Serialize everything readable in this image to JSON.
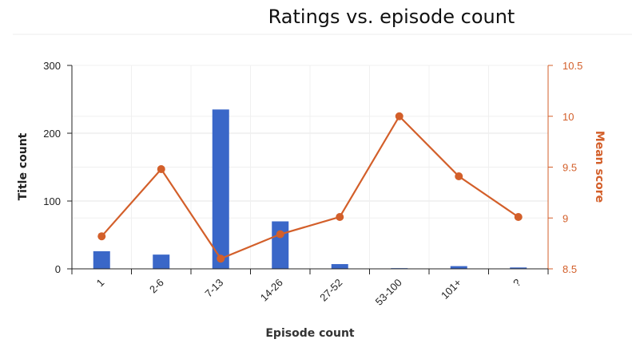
{
  "chart_data": {
    "type": "bar+line",
    "title": "Ratings vs. episode count",
    "xlabel": "Episode count",
    "categories": [
      "1",
      "2-6",
      "7-13",
      "14-26",
      "27-52",
      "53-100",
      "101+",
      "?"
    ],
    "y_left": {
      "label": "Title count",
      "lim": [
        0,
        300
      ],
      "ticks": [
        "0",
        "100",
        "200",
        "300"
      ],
      "tick_values": [
        0,
        100,
        200,
        300
      ]
    },
    "y_right": {
      "label": "Mean score",
      "lim": [
        8.5,
        10.5
      ],
      "ticks": [
        "8.5",
        "9",
        "9.5",
        "10",
        "10.5"
      ],
      "tick_values": [
        8.5,
        9,
        9.5,
        10,
        10.5
      ]
    },
    "series": [
      {
        "type": "bar",
        "axis": "left",
        "values": [
          26,
          21,
          235,
          70,
          7,
          1,
          4,
          2
        ]
      },
      {
        "type": "line",
        "axis": "right",
        "values": [
          8.82,
          9.48,
          8.6,
          8.84,
          9.01,
          10.0,
          9.41,
          9.01
        ]
      }
    ],
    "grid": true,
    "colors": {
      "bar": "#3a67c8",
      "line": "#d35f2a",
      "grid": "#e6e6e6"
    }
  }
}
